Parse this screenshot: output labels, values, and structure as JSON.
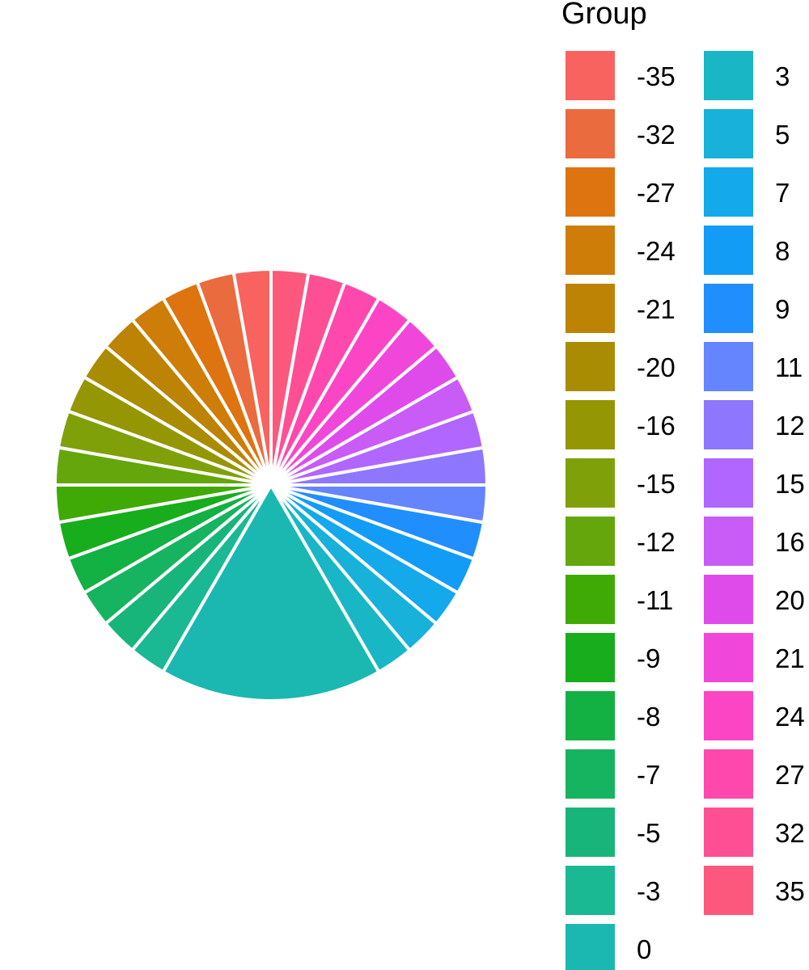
{
  "chart_data": {
    "type": "pie",
    "legend_title": "Group",
    "legend_placement": "right",
    "slice_border_color": "#ffffff",
    "slices": [
      {
        "label": "0",
        "value": 6,
        "color": "#1AB8B0"
      },
      {
        "label": "3",
        "value": 1,
        "color": "#19B6C6"
      },
      {
        "label": "5",
        "value": 1,
        "color": "#17B1DA"
      },
      {
        "label": "7",
        "value": 1,
        "color": "#13A9EA"
      },
      {
        "label": "8",
        "value": 1,
        "color": "#129CF6"
      },
      {
        "label": "9",
        "value": 1,
        "color": "#208EFD"
      },
      {
        "label": "11",
        "value": 1,
        "color": "#6584FF"
      },
      {
        "label": "12",
        "value": 1,
        "color": "#8E76FF"
      },
      {
        "label": "15",
        "value": 1,
        "color": "#B166FF"
      },
      {
        "label": "16",
        "value": 1,
        "color": "#C95BF6"
      },
      {
        "label": "20",
        "value": 1,
        "color": "#DF4BEB"
      },
      {
        "label": "21",
        "value": 1,
        "color": "#F046D9"
      },
      {
        "label": "24",
        "value": 1,
        "color": "#FC45C4"
      },
      {
        "label": "27",
        "value": 1,
        "color": "#FE48AE"
      },
      {
        "label": "32",
        "value": 1,
        "color": "#FE4F95"
      },
      {
        "label": "35",
        "value": 1,
        "color": "#FC577D"
      },
      {
        "label": "-35",
        "value": 1,
        "color": "#F8635F"
      },
      {
        "label": "-32",
        "value": 1,
        "color": "#EA6B3E"
      },
      {
        "label": "-27",
        "value": 1,
        "color": "#DD7410"
      },
      {
        "label": "-24",
        "value": 1,
        "color": "#CD7D08"
      },
      {
        "label": "-21",
        "value": 1,
        "color": "#BC8305"
      },
      {
        "label": "-20",
        "value": 1,
        "color": "#AA8C02"
      },
      {
        "label": "-16",
        "value": 1,
        "color": "#959604"
      },
      {
        "label": "-15",
        "value": 1,
        "color": "#80A00A"
      },
      {
        "label": "-12",
        "value": 1,
        "color": "#64A60B"
      },
      {
        "label": "-11",
        "value": 1,
        "color": "#3FAA06"
      },
      {
        "label": "-9",
        "value": 1,
        "color": "#18AD1C"
      },
      {
        "label": "-8",
        "value": 1,
        "color": "#13B043"
      },
      {
        "label": "-7",
        "value": 1,
        "color": "#16B460"
      },
      {
        "label": "-5",
        "value": 1,
        "color": "#18B57A"
      },
      {
        "label": "-3",
        "value": 1,
        "color": "#1AB893"
      }
    ],
    "legend_order": [
      "-35",
      "-32",
      "-27",
      "-24",
      "-21",
      "-20",
      "-16",
      "-15",
      "-12",
      "-11",
      "-9",
      "-8",
      "-7",
      "-5",
      "-3",
      "0",
      "3",
      "5",
      "7",
      "8",
      "9",
      "11",
      "12",
      "15",
      "16",
      "20",
      "21",
      "24",
      "27",
      "32",
      "35"
    ]
  }
}
